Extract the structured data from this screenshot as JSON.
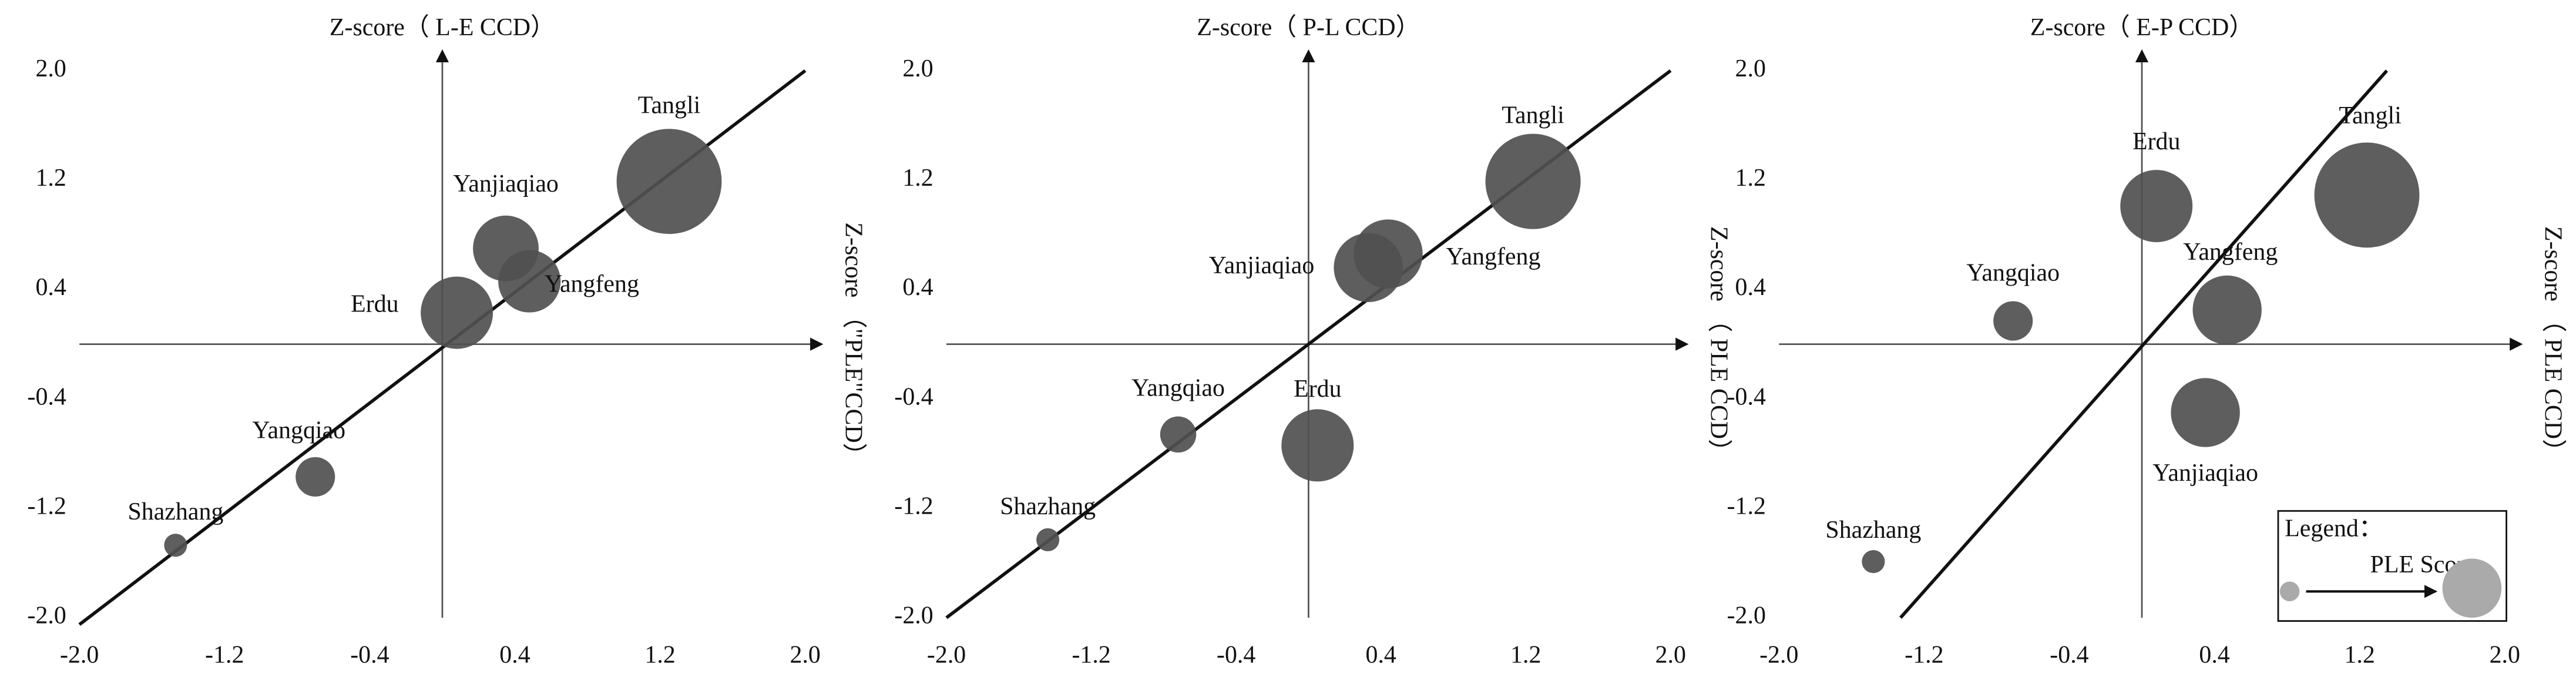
{
  "chart_data": [
    {
      "type": "bubble",
      "x_title": "Z-score（ L-E  CCD）",
      "y_title": "Z-score （\"PLE\"CCD）",
      "color": "#505050",
      "labels": [
        "Tangli",
        "Yanjiaqiao",
        "Yangfeng",
        "Erdu",
        "Yangqiao",
        "Shazhang"
      ],
      "x": [
        1.25,
        0.35,
        0.48,
        0.08,
        -0.7,
        -1.47
      ],
      "y": [
        1.19,
        0.7,
        0.46,
        0.23,
        -0.97,
        -1.47
      ],
      "size": [
        32,
        20,
        19,
        22,
        12,
        7
      ],
      "fit_line": {
        "x": [
          -2.0,
          2.0
        ],
        "y": [
          -2.05,
          2.0
        ]
      },
      "xlim": [
        -2.0,
        2.0
      ],
      "ylim": [
        -2.0,
        2.0
      ],
      "xticks": [
        {
          "value": -2.0,
          "label": "-2.0"
        },
        {
          "value": -1.2,
          "label": "-1.2"
        },
        {
          "value": -0.4,
          "label": "-0.4"
        },
        {
          "value": 0.4,
          "label": "0.4"
        },
        {
          "value": 1.2,
          "label": "1.2"
        },
        {
          "value": 2.0,
          "label": "2.0"
        }
      ],
      "yticks": [
        {
          "value": -2.0,
          "label": "-2.0"
        },
        {
          "value": -1.2,
          "label": "-1.2"
        },
        {
          "value": -0.4,
          "label": "-0.4"
        },
        {
          "value": 0.4,
          "label": "0.4"
        },
        {
          "value": 1.2,
          "label": "1.2"
        },
        {
          "value": 2.0,
          "label": "2.0"
        }
      ]
    },
    {
      "type": "bubble",
      "x_title": "Z-score（ P-L  CCD）",
      "y_title": "Z-score （ PLE  CCD）",
      "color": "#505050",
      "labels": [
        "Tangli",
        "Yangfeng",
        "Yanjiaqiao",
        "Erdu",
        "Yangqiao",
        "Shazhang"
      ],
      "x": [
        1.24,
        0.44,
        0.33,
        0.05,
        -0.72,
        -1.44
      ],
      "y": [
        1.19,
        0.66,
        0.56,
        -0.74,
        -0.66,
        -1.43
      ],
      "size": [
        29,
        21,
        21,
        22,
        11,
        7
      ],
      "fit_line": {
        "x": [
          -2.0,
          2.0
        ],
        "y": [
          -2.0,
          2.0
        ]
      },
      "xlim": [
        -2.0,
        2.0
      ],
      "ylim": [
        -2.0,
        2.0
      ],
      "xticks": [
        {
          "value": -2.0,
          "label": "-2.0"
        },
        {
          "value": -1.2,
          "label": "-1.2"
        },
        {
          "value": -0.4,
          "label": "-0.4"
        },
        {
          "value": 0.4,
          "label": "0.4"
        },
        {
          "value": 1.2,
          "label": "1.2"
        },
        {
          "value": 2.0,
          "label": "2.0"
        }
      ],
      "yticks": [
        {
          "value": -2.0,
          "label": "-2.0"
        },
        {
          "value": -1.2,
          "label": "-1.2"
        },
        {
          "value": -0.4,
          "label": "-0.4"
        },
        {
          "value": 0.4,
          "label": "0.4"
        },
        {
          "value": 1.2,
          "label": "1.2"
        },
        {
          "value": 2.0,
          "label": "2.0"
        }
      ]
    },
    {
      "type": "bubble",
      "x_title": "Z-score（ E-P  CCD）",
      "y_title": "Z-score （ PLE  CCD）",
      "color": "#505050",
      "labels": [
        "Tangli",
        "Erdu",
        "Yangqiao",
        "Yangfeng",
        "Yanjiaqiao",
        "Shazhang"
      ],
      "x": [
        1.24,
        0.08,
        -0.71,
        0.47,
        0.35,
        -1.48
      ],
      "y": [
        1.09,
        1.01,
        0.17,
        0.25,
        -0.5,
        -1.59
      ],
      "size": [
        32,
        22,
        12,
        21,
        21,
        7
      ],
      "fit_line": {
        "x": [
          -1.33,
          1.35
        ],
        "y": [
          -2.0,
          2.0
        ]
      },
      "xlim": [
        -2.0,
        2.0
      ],
      "ylim": [
        -2.0,
        2.0
      ],
      "xticks": [
        {
          "value": -2.0,
          "label": "-2.0"
        },
        {
          "value": -1.2,
          "label": "-1.2"
        },
        {
          "value": -0.4,
          "label": "-0.4"
        },
        {
          "value": 0.4,
          "label": "0.4"
        },
        {
          "value": 1.2,
          "label": "1.2"
        },
        {
          "value": 2.0,
          "label": "2.0"
        }
      ],
      "yticks": [
        {
          "value": -2.0,
          "label": "-2.0"
        },
        {
          "value": -1.2,
          "label": "-1.2"
        },
        {
          "value": -0.4,
          "label": "-0.4"
        },
        {
          "value": 0.4,
          "label": "0.4"
        },
        {
          "value": 1.2,
          "label": "1.2"
        },
        {
          "value": 2.0,
          "label": "2.0"
        }
      ],
      "legend": {
        "title": "Legend：",
        "label": "PLE  Score"
      }
    }
  ]
}
